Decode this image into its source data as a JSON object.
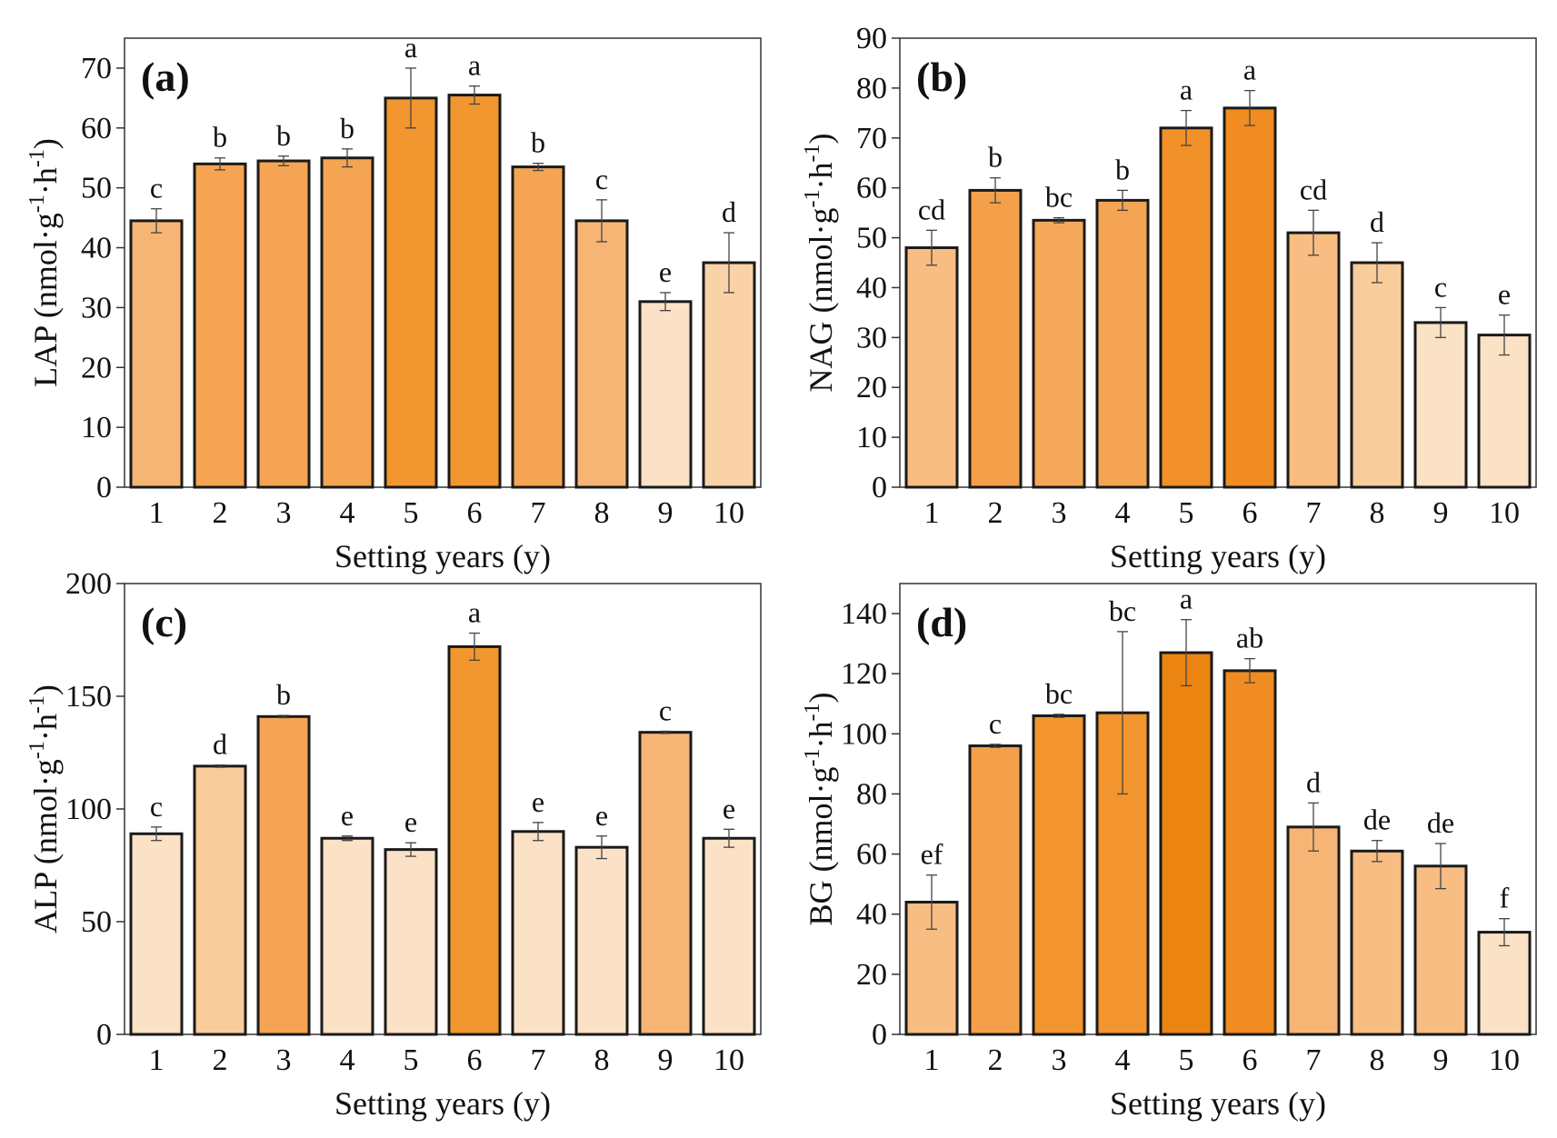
{
  "chart_data": [
    {
      "type": "bar",
      "panel_label": "(a)",
      "ylabel_parts": [
        "LAP (nmol·g",
        "-1",
        "·h",
        "-1",
        ")"
      ],
      "xlabel": "Setting years (y)",
      "categories": [
        "1",
        "2",
        "3",
        "4",
        "5",
        "6",
        "7",
        "8",
        "9",
        "10"
      ],
      "values": [
        44.5,
        54,
        54.5,
        55,
        65,
        65.5,
        53.5,
        44.5,
        31,
        37.5
      ],
      "errors": [
        2,
        1,
        0.8,
        1.5,
        5,
        1.5,
        0.6,
        3.5,
        1.5,
        5
      ],
      "significance": [
        "c",
        "b",
        "b",
        "b",
        "a",
        "a",
        "b",
        "c",
        "e",
        "d"
      ],
      "fill_colors": [
        "#f6b575",
        "#f4a452",
        "#f4a452",
        "#f4a452",
        "#f2962f",
        "#f2962f",
        "#f4a452",
        "#f6b575",
        "#fbe1c5",
        "#fad2a8"
      ],
      "ylim": [
        0,
        75
      ],
      "yticks": [
        "0",
        "10",
        "20",
        "30",
        "40",
        "50",
        "60",
        "70"
      ]
    },
    {
      "type": "bar",
      "panel_label": "(b)",
      "ylabel_parts": [
        "NAG (nmol·g",
        "-1",
        "·h",
        "-1",
        ")"
      ],
      "xlabel": "Setting years (y)",
      "categories": [
        "1",
        "2",
        "3",
        "4",
        "5",
        "6",
        "7",
        "8",
        "9",
        "10"
      ],
      "values": [
        48,
        59.5,
        53.5,
        57.5,
        72,
        76,
        51,
        45,
        33,
        30.5
      ],
      "errors": [
        3.5,
        2.5,
        0.5,
        2,
        3.5,
        3.5,
        4.5,
        4,
        3,
        4
      ],
      "significance": [
        "cd",
        "b",
        "bc",
        "b",
        "a",
        "a",
        "cd",
        "d",
        "c",
        "e"
      ],
      "fill_colors": [
        "#f7bd82",
        "#f4a04a",
        "#f5a85a",
        "#f4a452",
        "#f2912a",
        "#f08c22",
        "#f7bd82",
        "#f9cc9c",
        "#fbe1c5",
        "#fbe1c5"
      ],
      "ylim": [
        0,
        90
      ],
      "yticks": [
        "0",
        "10",
        "20",
        "30",
        "40",
        "50",
        "60",
        "70",
        "80",
        "90"
      ]
    },
    {
      "type": "bar",
      "panel_label": "(c)",
      "ylabel_parts": [
        "ALP (nmol·g",
        "-1",
        "·h",
        "-1",
        ")"
      ],
      "xlabel": "Setting years (y)",
      "categories": [
        "1",
        "2",
        "3",
        "4",
        "5",
        "6",
        "7",
        "8",
        "9",
        "10"
      ],
      "values": [
        89,
        119,
        141,
        87,
        82,
        172,
        90,
        83,
        134,
        87
      ],
      "errors": [
        3,
        0.5,
        0.5,
        1,
        3,
        6,
        4,
        5,
        0.5,
        4
      ],
      "significance": [
        "c",
        "d",
        "b",
        "e",
        "e",
        "a",
        "e",
        "e",
        "c",
        "e"
      ],
      "fill_colors": [
        "#fbe1c5",
        "#f9cc9c",
        "#f4a452",
        "#fbe1c5",
        "#fbe1c5",
        "#f2962f",
        "#fbe1c5",
        "#fbe1c5",
        "#f6b575",
        "#fbe1c5"
      ],
      "ylim": [
        0,
        200
      ],
      "yticks": [
        "0",
        "50",
        "100",
        "150",
        "200"
      ]
    },
    {
      "type": "bar",
      "panel_label": "(d)",
      "ylabel_parts": [
        "BG (nmol·g",
        "-1",
        "·h",
        "-1",
        ")"
      ],
      "xlabel": "Setting years (y)",
      "categories": [
        "1",
        "2",
        "3",
        "4",
        "5",
        "6",
        "7",
        "8",
        "9",
        "10"
      ],
      "values": [
        44,
        96,
        106,
        107,
        127,
        121,
        69,
        61,
        56,
        34
      ],
      "errors": [
        9,
        0.5,
        0.5,
        27,
        11,
        4,
        8,
        3.5,
        7.5,
        4.5
      ],
      "significance": [
        "ef",
        "c",
        "bc",
        "bc",
        "a",
        "ab",
        "d",
        "de",
        "de",
        "f"
      ],
      "fill_colors": [
        "#f7bd82",
        "#f4a04a",
        "#f2952e",
        "#f2952e",
        "#ec8412",
        "#f08c22",
        "#f6b575",
        "#f7bd82",
        "#f7bd82",
        "#fbe1c5"
      ],
      "ylim": [
        0,
        150
      ],
      "yticks": [
        "0",
        "20",
        "40",
        "60",
        "80",
        "100",
        "120",
        "140"
      ]
    }
  ]
}
